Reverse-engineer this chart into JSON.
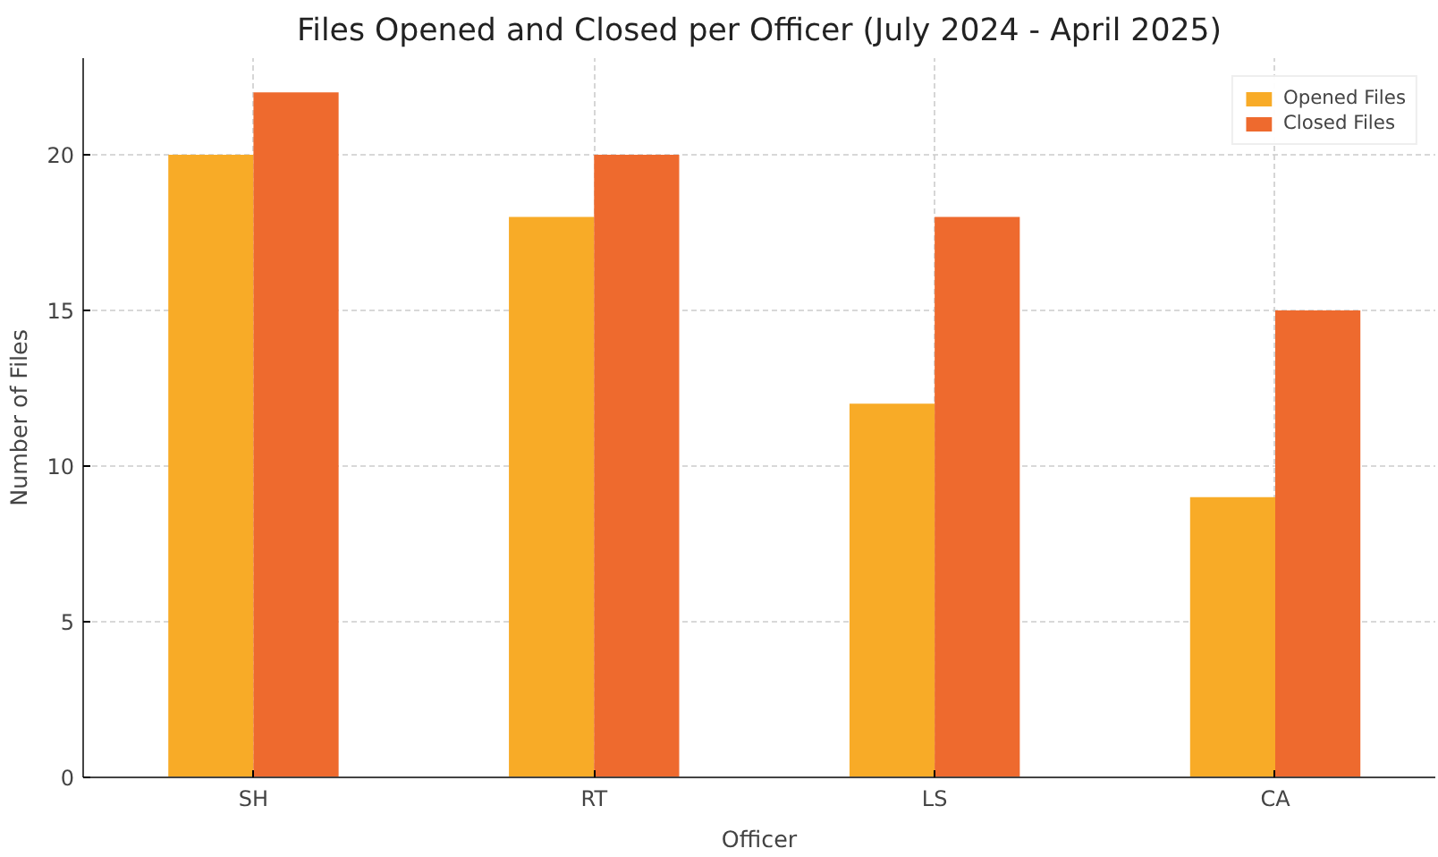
{
  "chart_data": {
    "type": "bar",
    "title": "Files Opened and Closed per Officer (July 2024 - April 2025)",
    "xlabel": "Officer",
    "ylabel": "Number of Files",
    "categories": [
      "SH",
      "RT",
      "LS",
      "CA"
    ],
    "series": [
      {
        "name": "Opened Files",
        "color": "#f8ab27",
        "values": [
          20,
          18,
          12,
          9
        ]
      },
      {
        "name": "Closed Files",
        "color": "#ee6a2e",
        "values": [
          22,
          20,
          18,
          15
        ]
      }
    ],
    "ylim": [
      0,
      23.1
    ],
    "yticks": [
      0,
      5,
      10,
      15,
      20
    ],
    "grid": true,
    "legend": "top right"
  }
}
